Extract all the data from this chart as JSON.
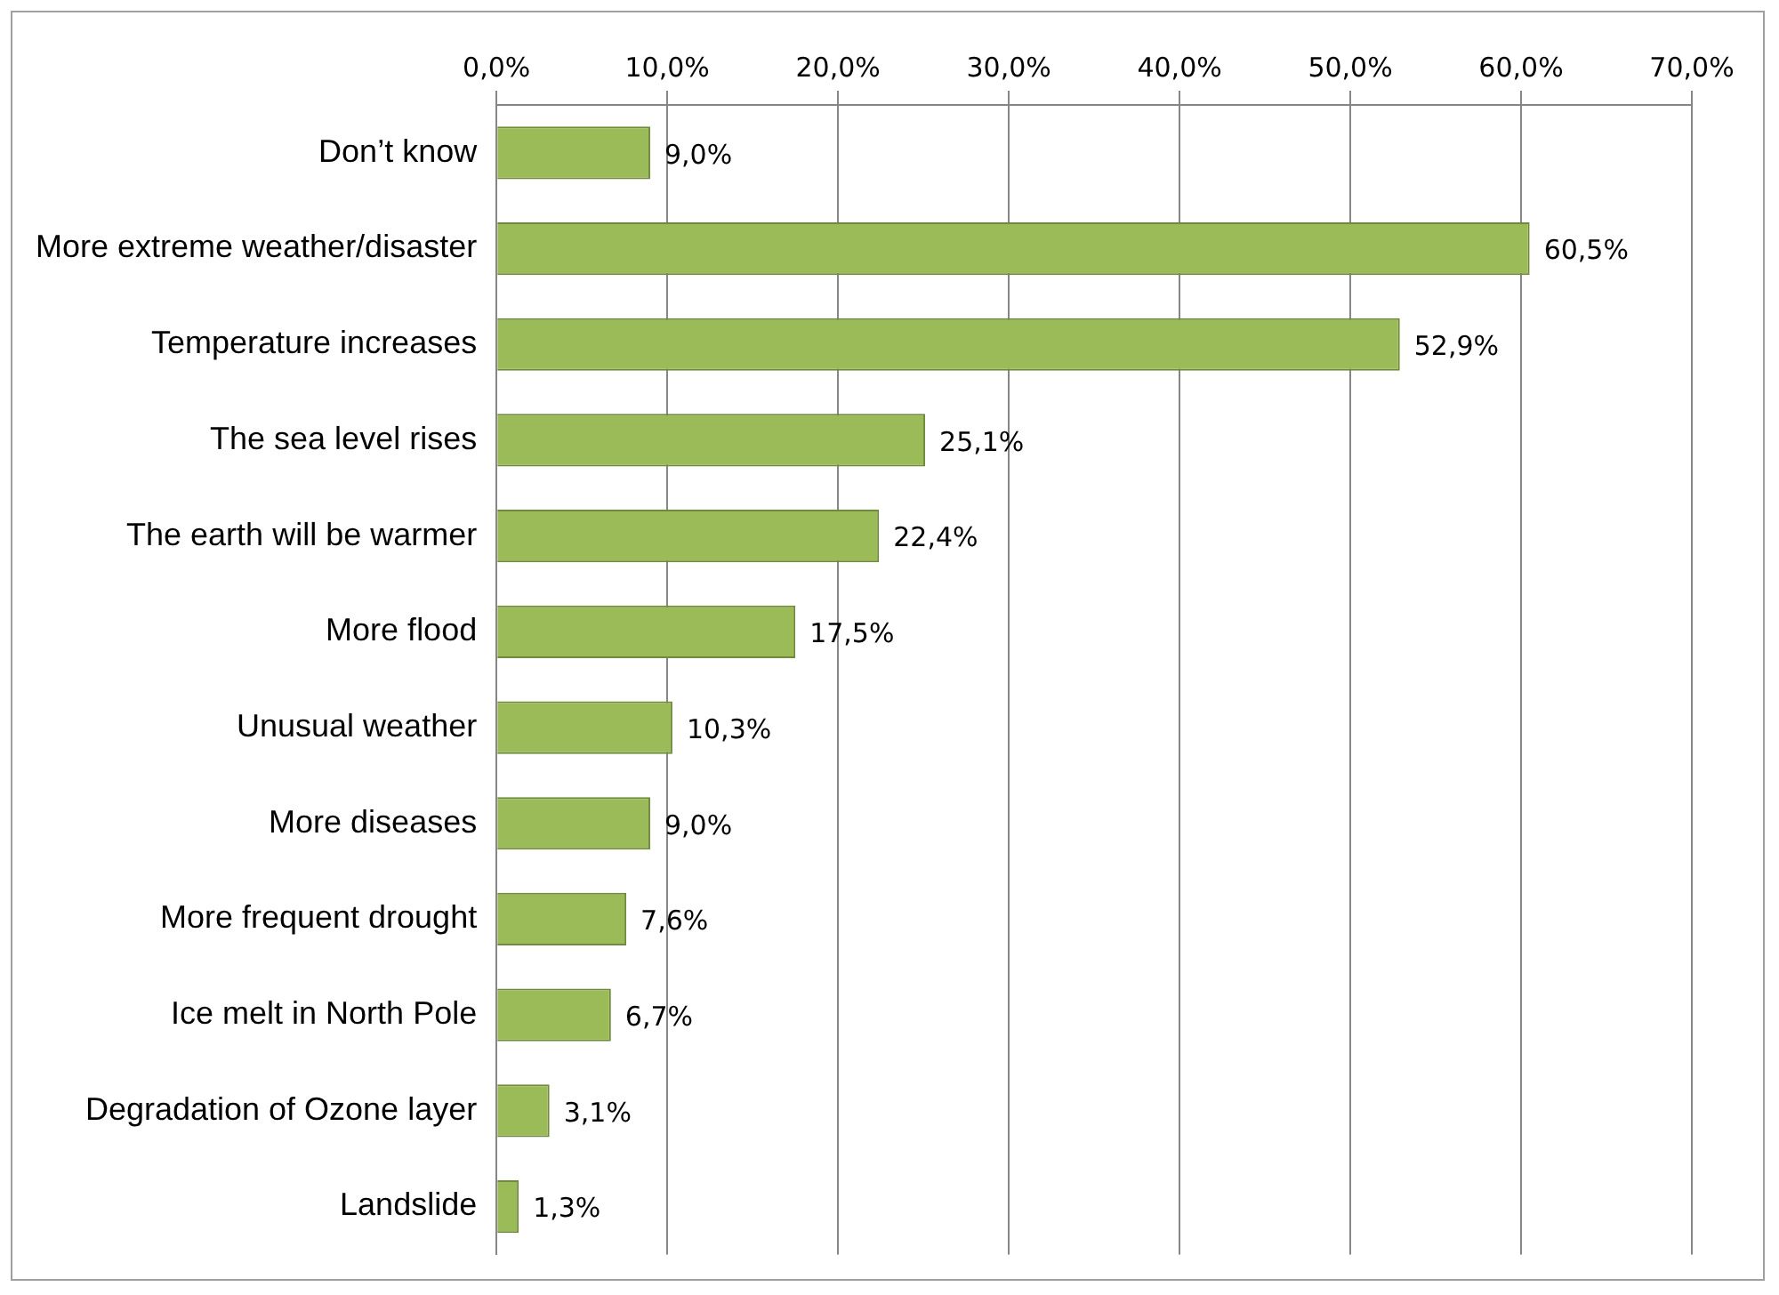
{
  "chart_data": {
    "type": "bar",
    "orientation": "horizontal",
    "categories": [
      "Don’t know",
      "More extreme weather/disaster",
      "Temperature increases",
      "The sea level rises",
      "The earth will be warmer",
      "More flood",
      "Unusual weather",
      "More diseases",
      "More frequent drought",
      "Ice melt in North Pole",
      "Degradation of Ozone layer",
      "Landslide"
    ],
    "values": [
      9.0,
      60.5,
      52.9,
      25.1,
      22.4,
      17.5,
      10.3,
      9.0,
      7.6,
      6.7,
      3.1,
      1.3
    ],
    "value_labels": [
      "9,0%",
      "60,5%",
      "52,9%",
      "25,1%",
      "22,4%",
      "17,5%",
      "10,3%",
      "9,0%",
      "7,6%",
      "6,7%",
      "3,1%",
      "1,3%"
    ],
    "color": "#9bbb59",
    "xlim": [
      0,
      70
    ],
    "xticks": [
      {
        "value": 0,
        "label": "0,0%"
      },
      {
        "value": 10,
        "label": "10,0%"
      },
      {
        "value": 20,
        "label": "20,0%"
      },
      {
        "value": 30,
        "label": "30,0%"
      },
      {
        "value": 40,
        "label": "40,0%"
      },
      {
        "value": 50,
        "label": "50,0%"
      },
      {
        "value": 60,
        "label": "60,0%"
      },
      {
        "value": 70,
        "label": "70,0%"
      }
    ],
    "grid": "x",
    "legend": false
  }
}
